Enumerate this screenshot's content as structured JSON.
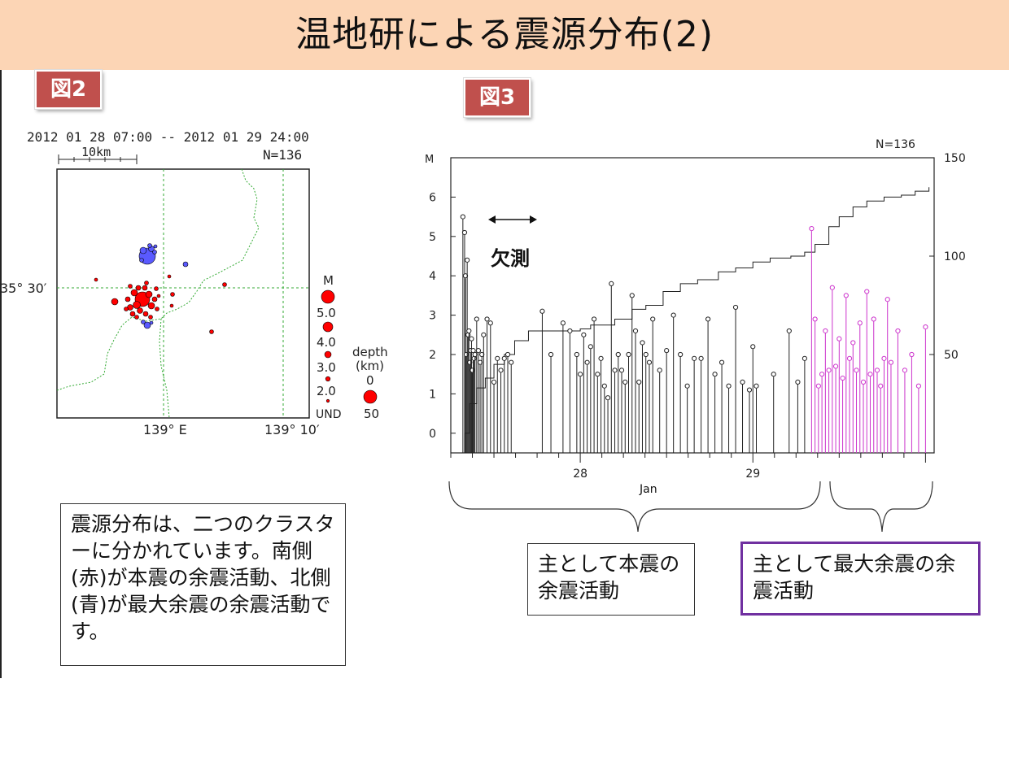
{
  "slide": {
    "title": "温地研による震源分布(2)",
    "fig2_tag": "図2",
    "fig3_tag": "図3"
  },
  "map": {
    "period": "2012 01 28 07:00 -- 2012 01 29 24:00",
    "scale_label": "10km",
    "count_label": "N=136",
    "lat_label": "35° 30′",
    "lon_label_1": "139° E",
    "lon_label_2": "139° 10′",
    "mag_legend_title": "M",
    "mag_legend": [
      "5.0",
      "4.0",
      "3.0",
      "2.0",
      "UND"
    ],
    "depth_legend_title": "depth",
    "depth_legend_unit": "(km)",
    "depth_legend": [
      "0",
      "50"
    ],
    "colors": {
      "shallow": "#ff0000",
      "deep": "#5a5aff",
      "border": "#33aa33"
    }
  },
  "chart_data": {
    "type": "scatter",
    "title": "",
    "count_label": "N=136",
    "ylabel_left": "M",
    "xlabel": "Jan",
    "x_ticks": [
      "28",
      "29"
    ],
    "y_ticks_left": [
      "0",
      "1",
      "2",
      "3",
      "4",
      "5",
      "6"
    ],
    "y_ticks_right": [
      "50",
      "100",
      "150"
    ],
    "ylim_left": [
      -0.5,
      7
    ],
    "ylim_right": [
      0,
      150
    ],
    "gap_label": "欠測",
    "series": [
      {
        "color": "#222222",
        "x": [
          27.32,
          27.33,
          27.335,
          27.34,
          27.345,
          27.35,
          27.355,
          27.36,
          27.365,
          27.37,
          27.375,
          27.38,
          27.385,
          27.39,
          27.4,
          27.41,
          27.42,
          27.43,
          27.44,
          27.46,
          27.48,
          27.5,
          27.52,
          27.54,
          27.56,
          27.58,
          27.6,
          27.78,
          27.83,
          27.9,
          27.94,
          27.98,
          28.0,
          28.02,
          28.04,
          28.06,
          28.08,
          28.1,
          28.12,
          28.14,
          28.16,
          28.18,
          28.2,
          28.22,
          28.24,
          28.26,
          28.28,
          28.3,
          28.32,
          28.34,
          28.36,
          28.38,
          28.4,
          28.42,
          28.46,
          28.5,
          28.54,
          28.58,
          28.62,
          28.66,
          28.7,
          28.74,
          28.78,
          28.82,
          28.86,
          28.9,
          28.94,
          28.98,
          29.0,
          29.02,
          29.12,
          29.21,
          29.26,
          29.3
        ],
        "values": [
          5.5,
          5.1,
          4.0,
          2.0,
          4.4,
          2.5,
          2.6,
          1.8,
          2.1,
          2.4,
          1.6,
          2.1,
          1.9,
          2.0,
          2.9,
          2.1,
          1.8,
          2.0,
          2.5,
          2.9,
          2.8,
          1.3,
          1.9,
          1.6,
          1.9,
          2.0,
          1.8,
          3.1,
          2.0,
          2.8,
          2.6,
          2.0,
          1.5,
          2.5,
          1.8,
          2.2,
          2.9,
          1.5,
          1.9,
          1.2,
          0.9,
          3.8,
          1.6,
          2.0,
          1.6,
          1.3,
          2.0,
          3.5,
          2.6,
          1.3,
          2.3,
          2.0,
          1.8,
          2.9,
          1.6,
          2.1,
          3.0,
          2.0,
          1.2,
          1.9,
          1.9,
          2.9,
          1.5,
          1.8,
          1.2,
          3.2,
          1.3,
          1.1,
          2.2,
          1.2,
          1.5,
          2.6,
          1.3,
          1.9
        ]
      },
      {
        "color": "#cc33cc",
        "x": [
          29.34,
          29.36,
          29.38,
          29.4,
          29.42,
          29.44,
          29.46,
          29.48,
          29.5,
          29.52,
          29.54,
          29.56,
          29.58,
          29.6,
          29.62,
          29.64,
          29.66,
          29.68,
          29.7,
          29.72,
          29.74,
          29.76,
          29.78,
          29.8,
          29.84,
          29.88,
          29.92,
          29.96,
          30.0
        ],
        "values": [
          5.2,
          2.9,
          1.2,
          1.5,
          2.6,
          1.6,
          3.7,
          1.7,
          2.4,
          1.4,
          3.5,
          1.9,
          2.3,
          1.6,
          2.8,
          1.3,
          3.6,
          1.5,
          2.9,
          1.6,
          1.2,
          1.9,
          3.4,
          1.8,
          2.6,
          1.6,
          2.0,
          1.2,
          2.7
        ]
      }
    ],
    "cumulative": [
      [
        27.3,
        0
      ],
      [
        27.33,
        10
      ],
      [
        27.36,
        25
      ],
      [
        27.4,
        33
      ],
      [
        27.45,
        38
      ],
      [
        27.5,
        45
      ],
      [
        27.56,
        50
      ],
      [
        27.62,
        57
      ],
      [
        27.7,
        62
      ],
      [
        27.85,
        62
      ],
      [
        28.0,
        63
      ],
      [
        28.06,
        65
      ],
      [
        28.2,
        68
      ],
      [
        28.3,
        73
      ],
      [
        28.38,
        75
      ],
      [
        28.48,
        82
      ],
      [
        28.58,
        86
      ],
      [
        28.68,
        88
      ],
      [
        28.8,
        92
      ],
      [
        28.9,
        94
      ],
      [
        29.0,
        97
      ],
      [
        29.1,
        99
      ],
      [
        29.22,
        100
      ],
      [
        29.3,
        102
      ],
      [
        29.36,
        106
      ],
      [
        29.44,
        115
      ],
      [
        29.5,
        120
      ],
      [
        29.58,
        125
      ],
      [
        29.66,
        128
      ],
      [
        29.76,
        130
      ],
      [
        29.86,
        131
      ],
      [
        29.94,
        133
      ],
      [
        30.02,
        135
      ]
    ]
  },
  "annotations": {
    "description": "震源分布は、二つのクラスターに分かれています。南側(赤)が本震の余震活動、北側(青)が最大余震の余震活動です。",
    "main_shock": "主として本震の余震活動",
    "largest_aftershock": "主として最大余震の余震活動"
  }
}
